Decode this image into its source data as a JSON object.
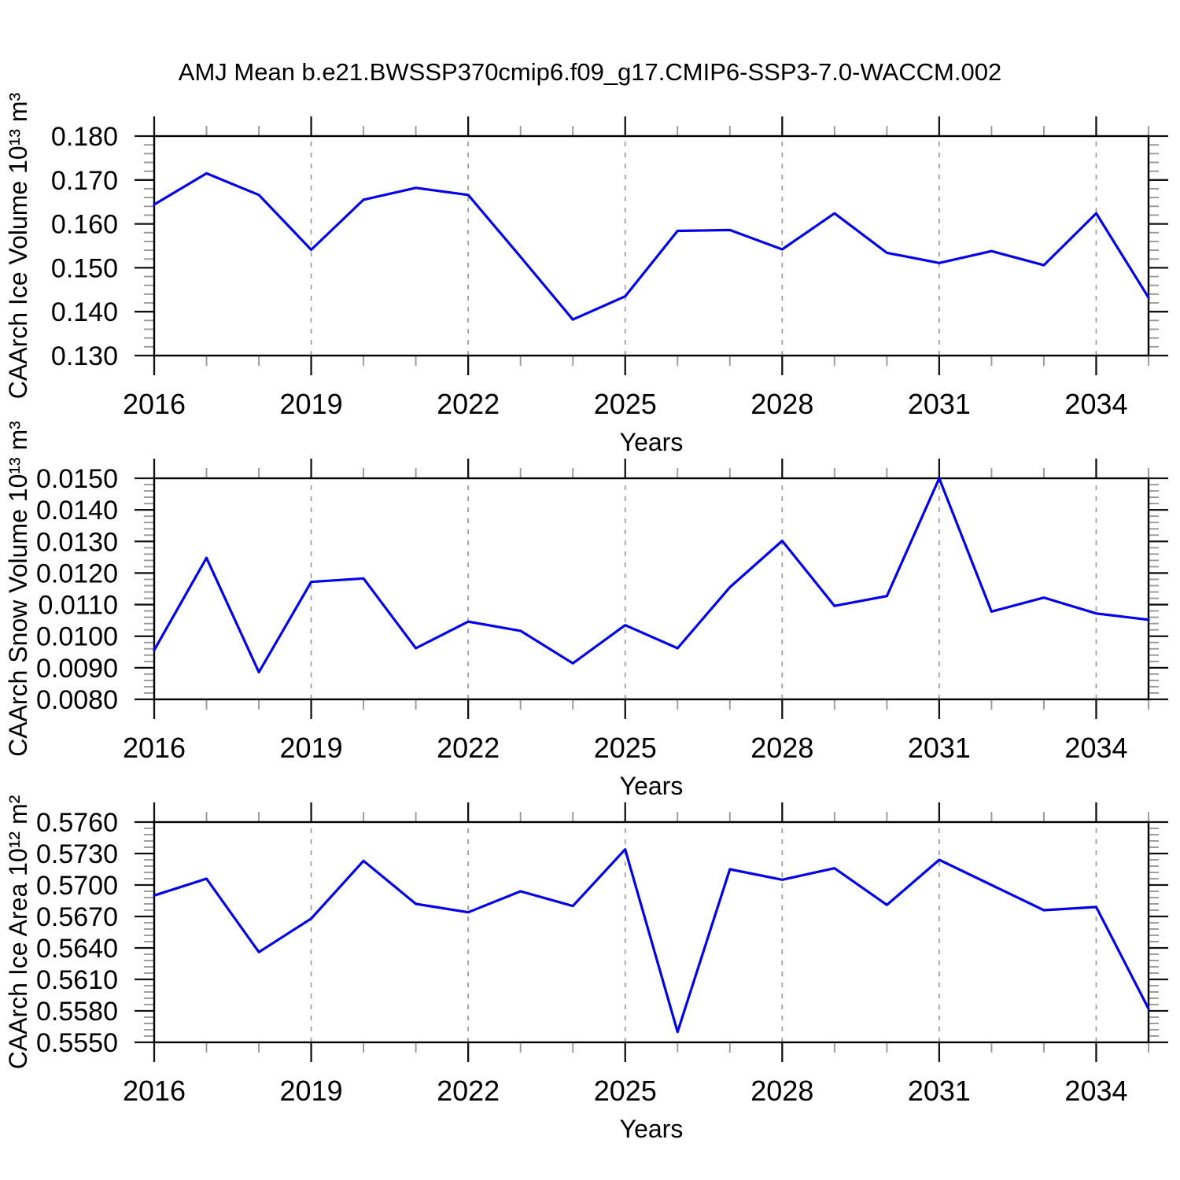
{
  "title": "AMJ Mean b.e21.BWSSP370cmip6.f09_g17.CMIP6-SSP3-7.0-WACCM.002",
  "colors": {
    "line": "#0000ee",
    "axis": "#000000",
    "major_tick": "#111111",
    "minor_tick": "#999999",
    "grid": "#9a9a9a",
    "background": "#ffffff"
  },
  "chart_data": [
    {
      "type": "line",
      "ylabel": "CAArch Ice Volume 10¹³ m³",
      "xlabel": "Years",
      "x": [
        2016,
        2017,
        2018,
        2019,
        2020,
        2021,
        2022,
        2023,
        2024,
        2025,
        2026,
        2027,
        2028,
        2029,
        2030,
        2031,
        2032,
        2033,
        2034,
        2035
      ],
      "values": [
        0.1644,
        0.1715,
        0.1666,
        0.1541,
        0.1655,
        0.1682,
        0.1666,
        0.1525,
        0.1382,
        0.1435,
        0.1584,
        0.1586,
        0.1542,
        0.1624,
        0.1534,
        0.1511,
        0.1538,
        0.1506,
        0.1624,
        0.1432
      ],
      "ylim": [
        0.13,
        0.18
      ],
      "yticks": [
        0.13,
        0.14,
        0.15,
        0.16,
        0.17,
        0.18
      ],
      "y_minor_step": 0.002,
      "y_decimals": 3,
      "xlim": [
        2016,
        2035
      ],
      "xticks": [
        2016,
        2019,
        2022,
        2025,
        2028,
        2031,
        2034
      ],
      "x_minor_step": 1,
      "grid_years": [
        2019,
        2022,
        2025,
        2028,
        2031,
        2034
      ],
      "grid": "vertical-dashed",
      "legend": "none"
    },
    {
      "type": "line",
      "ylabel": "CAArch Snow Volume 10¹³ m³",
      "xlabel": "Years",
      "x": [
        2016,
        2017,
        2018,
        2019,
        2020,
        2021,
        2022,
        2023,
        2024,
        2025,
        2026,
        2027,
        2028,
        2029,
        2030,
        2031,
        2032,
        2033,
        2034,
        2035
      ],
      "values": [
        0.00956,
        0.01248,
        0.00886,
        0.01172,
        0.01183,
        0.00962,
        0.01046,
        0.01017,
        0.00914,
        0.01035,
        0.00962,
        0.01155,
        0.01302,
        0.01096,
        0.01127,
        0.015,
        0.01078,
        0.01122,
        0.01072,
        0.01052
      ],
      "ylim": [
        0.008,
        0.015
      ],
      "yticks": [
        0.008,
        0.009,
        0.01,
        0.011,
        0.012,
        0.013,
        0.014,
        0.015
      ],
      "y_minor_step": 0.0002,
      "y_decimals": 4,
      "xlim": [
        2016,
        2035
      ],
      "xticks": [
        2016,
        2019,
        2022,
        2025,
        2028,
        2031,
        2034
      ],
      "x_minor_step": 1,
      "grid_years": [
        2019,
        2022,
        2025,
        2028,
        2031,
        2034
      ],
      "grid": "vertical-dashed",
      "legend": "none"
    },
    {
      "type": "line",
      "ylabel": "CAArch Ice Area 10¹² m²",
      "xlabel": "Years",
      "x": [
        2016,
        2017,
        2018,
        2019,
        2020,
        2021,
        2022,
        2023,
        2024,
        2025,
        2026,
        2027,
        2028,
        2029,
        2030,
        2031,
        2032,
        2033,
        2034,
        2035
      ],
      "values": [
        0.569,
        0.5706,
        0.5636,
        0.5668,
        0.5723,
        0.5682,
        0.5674,
        0.5694,
        0.568,
        0.5734,
        0.556,
        0.5715,
        0.5705,
        0.5716,
        0.5681,
        0.5724,
        0.57,
        0.5676,
        0.5679,
        0.5582
      ],
      "ylim": [
        0.555,
        0.576
      ],
      "yticks": [
        0.555,
        0.558,
        0.561,
        0.564,
        0.567,
        0.57,
        0.573,
        0.576
      ],
      "y_minor_step": 0.0006,
      "y_decimals": 4,
      "xlim": [
        2016,
        2035
      ],
      "xticks": [
        2016,
        2019,
        2022,
        2025,
        2028,
        2031,
        2034
      ],
      "x_minor_step": 1,
      "grid_years": [
        2019,
        2022,
        2025,
        2028,
        2031,
        2034
      ],
      "grid": "vertical-dashed",
      "legend": "none"
    }
  ]
}
